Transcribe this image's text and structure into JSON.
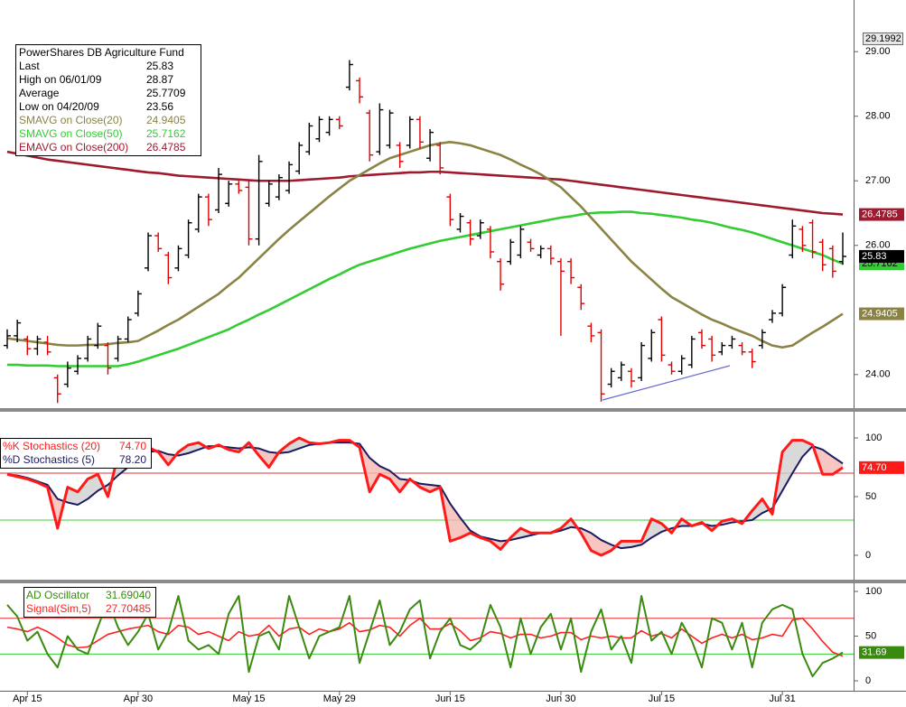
{
  "chart_data": [
    {
      "type": "ohlc",
      "title": "PowerShares DB Agriculture Fund",
      "stats": [
        {
          "label": "Last",
          "value": 25.83
        },
        {
          "label": "High on 06/01/09",
          "value": 28.87
        },
        {
          "label": "Average",
          "value": 25.7709
        },
        {
          "label": "Low on 04/20/09",
          "value": 23.56
        }
      ],
      "open": [
        24.45,
        24.6,
        24.55,
        24.4,
        24.5,
        23.95,
        23.85,
        24.05,
        24.25,
        24.45,
        24.45,
        24.25,
        24.55,
        24.95,
        25.65,
        26.15,
        25.85,
        25.65,
        25.85,
        26.25,
        26.75,
        26.55,
        26.65,
        26.95,
        26.9,
        26.1,
        26.65,
        26.75,
        26.85,
        27.15,
        27.45,
        27.65,
        27.75,
        27.95,
        28.45,
        28.55,
        28.05,
        27.45,
        27.55,
        27.55,
        27.55,
        27.95,
        27.35,
        27.55,
        26.75,
        26.25,
        26.35,
        26.15,
        26.25,
        25.75,
        25.75,
        25.85,
        26.05,
        25.85,
        25.95,
        25.75,
        25.75,
        25.35,
        24.75,
        24.65,
        23.85,
        23.95,
        24.05,
        23.95,
        24.25,
        24.85,
        24.15,
        24.05,
        24.15,
        24.65,
        24.55,
        24.35,
        24.45,
        24.45,
        24.35,
        24.45,
        24.85,
        24.95,
        25.85,
        26.25,
        26.35,
        26.05,
        25.95,
        25.75
      ],
      "high": [
        24.7,
        24.85,
        24.6,
        24.6,
        24.6,
        24.0,
        24.2,
        24.3,
        24.6,
        24.8,
        24.5,
        24.6,
        24.9,
        25.3,
        26.2,
        26.2,
        25.9,
        26.0,
        26.4,
        26.8,
        26.8,
        27.2,
        27.0,
        27.0,
        27.0,
        27.4,
        27.0,
        27.1,
        27.3,
        27.6,
        27.9,
        28.0,
        28.0,
        28.0,
        28.87,
        28.6,
        28.1,
        28.2,
        28.1,
        27.6,
        28.0,
        28.0,
        27.8,
        27.6,
        26.8,
        26.5,
        26.4,
        26.4,
        26.3,
        25.8,
        26.1,
        26.3,
        26.1,
        26.0,
        26.0,
        25.8,
        25.8,
        25.4,
        24.8,
        24.7,
        24.1,
        24.2,
        24.1,
        24.5,
        24.7,
        24.9,
        24.2,
        24.3,
        24.6,
        24.7,
        24.6,
        24.5,
        24.6,
        24.5,
        24.4,
        24.7,
        25.0,
        25.4,
        26.4,
        26.3,
        26.4,
        26.1,
        26.0,
        26.2
      ],
      "low": [
        24.4,
        24.5,
        24.3,
        24.3,
        24.3,
        23.56,
        23.8,
        24.0,
        24.2,
        24.4,
        24.0,
        24.2,
        24.5,
        24.9,
        25.6,
        25.9,
        25.4,
        25.6,
        25.8,
        26.2,
        26.3,
        26.5,
        26.6,
        26.8,
        26.0,
        26.0,
        26.6,
        26.7,
        26.8,
        27.1,
        27.4,
        27.6,
        27.7,
        27.8,
        28.4,
        28.2,
        27.3,
        27.4,
        27.5,
        27.2,
        27.5,
        27.5,
        27.3,
        27.1,
        26.3,
        26.2,
        26.0,
        26.1,
        25.8,
        25.3,
        25.7,
        25.8,
        25.9,
        25.8,
        25.7,
        24.6,
        25.4,
        25.0,
        24.5,
        23.58,
        23.8,
        23.9,
        23.8,
        23.9,
        24.2,
        24.2,
        24.0,
        24.0,
        24.1,
        24.4,
        24.2,
        24.3,
        24.4,
        24.3,
        24.1,
        24.4,
        24.8,
        24.9,
        25.8,
        25.9,
        25.8,
        25.6,
        25.5,
        25.7
      ],
      "close": [
        24.6,
        24.8,
        24.4,
        24.55,
        24.35,
        23.7,
        24.1,
        24.25,
        24.55,
        24.75,
        24.1,
        24.55,
        24.85,
        25.25,
        26.15,
        25.95,
        25.5,
        25.95,
        26.35,
        26.75,
        26.4,
        27.1,
        26.95,
        26.85,
        26.1,
        27.3,
        26.95,
        27.05,
        27.25,
        27.55,
        27.85,
        27.95,
        27.95,
        27.85,
        28.8,
        28.3,
        27.4,
        28.1,
        28.05,
        27.3,
        27.95,
        27.6,
        27.75,
        27.2,
        26.4,
        26.45,
        26.1,
        26.35,
        25.9,
        25.4,
        26.05,
        26.25,
        25.95,
        25.95,
        25.8,
        25.6,
        25.5,
        25.1,
        24.6,
        23.7,
        24.05,
        24.15,
        23.9,
        24.45,
        24.65,
        24.3,
        24.05,
        24.25,
        24.55,
        24.45,
        24.3,
        24.45,
        24.55,
        24.35,
        24.2,
        24.65,
        24.95,
        25.35,
        26.3,
        26.0,
        25.9,
        25.7,
        25.6,
        25.83
      ],
      "up_color": "#000000",
      "down_color": "#e00000",
      "series": [
        {
          "name": "SMAVG on Close(20)",
          "color": "#8a8344",
          "values": [
            24.56,
            24.54,
            24.52,
            24.5,
            24.48,
            24.46,
            24.45,
            24.45,
            24.46,
            24.46,
            24.47,
            24.49,
            24.5,
            24.52,
            24.6,
            24.68,
            24.77,
            24.85,
            24.95,
            25.05,
            25.15,
            25.25,
            25.38,
            25.5,
            25.65,
            25.8,
            25.95,
            26.1,
            26.24,
            26.37,
            26.5,
            26.63,
            26.76,
            26.88,
            27.0,
            27.09,
            27.18,
            27.27,
            27.35,
            27.4,
            27.45,
            27.5,
            27.55,
            27.58,
            27.6,
            27.58,
            27.55,
            27.5,
            27.45,
            27.4,
            27.33,
            27.25,
            27.18,
            27.1,
            27.0,
            26.9,
            26.75,
            26.6,
            26.43,
            26.26,
            26.09,
            25.92,
            25.75,
            25.61,
            25.47,
            25.33,
            25.2,
            25.11,
            25.02,
            24.93,
            24.85,
            24.79,
            24.72,
            24.66,
            24.6,
            24.52,
            24.45,
            24.42,
            24.45,
            24.55,
            24.65,
            24.74,
            24.84,
            24.9405
          ]
        },
        {
          "name": "SMAVG on Close(50)",
          "color": "#33cc33",
          "values": [
            24.15,
            24.15,
            24.14,
            24.14,
            24.14,
            24.13,
            24.13,
            24.13,
            24.13,
            24.13,
            24.13,
            24.13,
            24.16,
            24.2,
            24.25,
            24.3,
            24.35,
            24.4,
            24.46,
            24.52,
            24.58,
            24.64,
            24.7,
            24.78,
            24.85,
            24.93,
            25.0,
            25.08,
            25.16,
            25.24,
            25.32,
            25.4,
            25.48,
            25.55,
            25.63,
            25.7,
            25.75,
            25.8,
            25.85,
            25.9,
            25.95,
            25.99,
            26.03,
            26.07,
            26.1,
            26.13,
            26.16,
            26.19,
            26.22,
            26.25,
            26.28,
            26.31,
            26.34,
            26.37,
            26.4,
            26.43,
            26.45,
            26.48,
            26.5,
            26.51,
            26.51,
            26.52,
            26.52,
            26.5,
            26.49,
            26.47,
            26.45,
            26.43,
            26.4,
            26.38,
            26.35,
            26.31,
            26.27,
            26.24,
            26.2,
            26.15,
            26.1,
            26.05,
            26.0,
            25.95,
            25.9,
            25.85,
            25.78,
            25.7162
          ]
        },
        {
          "name": "EMAVG on Close(200)",
          "color": "#9e1a2e",
          "values": [
            27.45,
            27.42,
            27.39,
            27.36,
            27.33,
            27.31,
            27.29,
            27.27,
            27.25,
            27.23,
            27.21,
            27.19,
            27.17,
            27.15,
            27.13,
            27.12,
            27.1,
            27.08,
            27.07,
            27.06,
            27.05,
            27.04,
            27.03,
            27.02,
            27.01,
            27.0,
            27.0,
            27.0,
            27.0,
            27.01,
            27.02,
            27.03,
            27.04,
            27.05,
            27.07,
            27.08,
            27.09,
            27.1,
            27.11,
            27.12,
            27.13,
            27.13,
            27.14,
            27.14,
            27.13,
            27.12,
            27.11,
            27.1,
            27.09,
            27.08,
            27.07,
            27.06,
            27.05,
            27.04,
            27.03,
            27.02,
            27.0,
            26.98,
            26.96,
            26.94,
            26.92,
            26.9,
            26.88,
            26.86,
            26.84,
            26.82,
            26.8,
            26.78,
            26.76,
            26.74,
            26.72,
            26.7,
            26.68,
            26.66,
            26.64,
            26.62,
            26.6,
            26.58,
            26.56,
            26.54,
            26.52,
            26.5,
            26.49,
            26.4785
          ]
        }
      ],
      "ylim": [
        23.48,
        29.8
      ],
      "yticks": [
        {
          "value": 24,
          "label": "24.00"
        },
        {
          "value": 26,
          "label": "26.00"
        },
        {
          "value": 27,
          "label": "27.00"
        },
        {
          "value": 28,
          "label": "28.00"
        },
        {
          "value": 29,
          "label": "29.00"
        }
      ],
      "cursor_value": 29.1992
    },
    {
      "type": "line",
      "series": [
        {
          "name": "%K Stochastics (20)",
          "color": "#ff1a1a",
          "last_label": "74.70",
          "axis_marker": true,
          "values": [
            69,
            67,
            65,
            62,
            58,
            23,
            58,
            54,
            65,
            69,
            50,
            85,
            92,
            88,
            92,
            88,
            77,
            88,
            94,
            96,
            91,
            94,
            90,
            88,
            96,
            85,
            75,
            88,
            95,
            100,
            96,
            95,
            96,
            98,
            98,
            92,
            54,
            69,
            65,
            54,
            65,
            58,
            54,
            58,
            12,
            15,
            19,
            15,
            12,
            5,
            15,
            23,
            19,
            19,
            19,
            23,
            31,
            19,
            4,
            0,
            4,
            12,
            12,
            12,
            31,
            27,
            19,
            31,
            25,
            28,
            21,
            29,
            31,
            27,
            38,
            48,
            35,
            88,
            98,
            98,
            94,
            69,
            69,
            74.7
          ]
        },
        {
          "name": "%D Stochastics (5)",
          "color": "#1a1a60",
          "last_label": "78.20",
          "values": [
            69,
            68,
            66,
            63,
            60,
            48,
            45,
            43,
            48,
            55,
            60,
            68,
            75,
            82,
            88,
            89,
            86,
            85,
            87,
            90,
            93,
            93,
            92,
            91,
            92,
            91,
            88,
            87,
            88,
            91,
            94,
            95,
            96,
            96,
            96,
            95,
            83,
            76,
            72,
            65,
            64,
            61,
            60,
            59,
            44,
            32,
            21,
            16,
            14,
            12,
            13,
            15,
            17,
            19,
            19,
            21,
            24,
            23,
            19,
            13,
            9,
            6,
            7,
            9,
            15,
            20,
            23,
            25,
            25,
            27,
            25,
            26,
            28,
            29,
            30,
            36,
            40,
            55,
            70,
            84,
            93,
            90,
            84,
            78.2
          ]
        }
      ],
      "reference_lines": [
        {
          "value": 70,
          "color": "#e03030"
        },
        {
          "value": 30,
          "color": "#33cc33"
        }
      ],
      "ylim": [
        -20.8,
        122.3
      ],
      "yticks": [
        0,
        50,
        100
      ]
    },
    {
      "type": "line",
      "categories": [
        null,
        null,
        "Apr 15",
        null,
        null,
        null,
        null,
        null,
        null,
        null,
        null,
        null,
        null,
        "Apr 30",
        null,
        null,
        null,
        null,
        null,
        null,
        null,
        null,
        null,
        null,
        "May 15",
        null,
        null,
        null,
        null,
        null,
        null,
        null,
        null,
        "May 29",
        null,
        null,
        null,
        null,
        null,
        null,
        null,
        null,
        null,
        null,
        "Jun 15",
        null,
        null,
        null,
        null,
        null,
        null,
        null,
        null,
        null,
        null,
        "Jun 30",
        null,
        null,
        null,
        null,
        null,
        null,
        null,
        null,
        null,
        "Jul 15",
        null,
        null,
        null,
        null,
        null,
        null,
        null,
        null,
        null,
        null,
        null,
        "Jul 31",
        null,
        null,
        null,
        null,
        null,
        null
      ],
      "series": [
        {
          "name": "AD Oscillator",
          "color": "#3a8a10",
          "last_label": "31.69040",
          "axis_label": "31.69",
          "axis_marker": true,
          "values": [
            85,
            72,
            45,
            55,
            30,
            15,
            50,
            35,
            30,
            60,
            90,
            60,
            40,
            55,
            75,
            35,
            55,
            95,
            45,
            35,
            40,
            30,
            75,
            95,
            10,
            50,
            55,
            35,
            95,
            60,
            25,
            50,
            55,
            60,
            95,
            20,
            55,
            90,
            40,
            55,
            80,
            90,
            25,
            55,
            70,
            40,
            35,
            45,
            85,
            60,
            15,
            70,
            30,
            60,
            75,
            35,
            70,
            10,
            55,
            80,
            35,
            50,
            20,
            95,
            45,
            55,
            30,
            65,
            45,
            15,
            70,
            65,
            35,
            65,
            15,
            65,
            80,
            85,
            80,
            30,
            5,
            20,
            25,
            31.6904
          ]
        },
        {
          "name": "Signal(Sim,5)",
          "color": "#ff2020",
          "values": [
            60,
            58,
            55,
            60,
            55,
            48,
            40,
            37,
            38,
            45,
            52,
            55,
            58,
            60,
            62,
            55,
            52,
            62,
            60,
            52,
            55,
            50,
            45,
            55,
            50,
            52,
            62,
            50,
            58,
            60,
            52,
            58,
            55,
            58,
            65,
            55,
            57,
            62,
            60,
            50,
            62,
            70,
            58,
            58,
            64,
            56,
            45,
            48,
            55,
            53,
            48,
            52,
            52,
            48,
            50,
            54,
            54,
            46,
            50,
            48,
            50,
            48,
            48,
            56,
            50,
            53,
            48,
            58,
            50,
            42,
            48,
            52,
            48,
            52,
            46,
            48,
            52,
            50,
            68,
            70,
            58,
            44,
            32,
            27.70485
          ]
        }
      ],
      "reference_lines": [
        {
          "value": 70,
          "color": "#e03030"
        },
        {
          "value": 30,
          "color": "#33cc33"
        }
      ],
      "ylim": [
        -11.1,
        108.1
      ],
      "yticks": [
        0,
        50,
        100
      ]
    }
  ]
}
